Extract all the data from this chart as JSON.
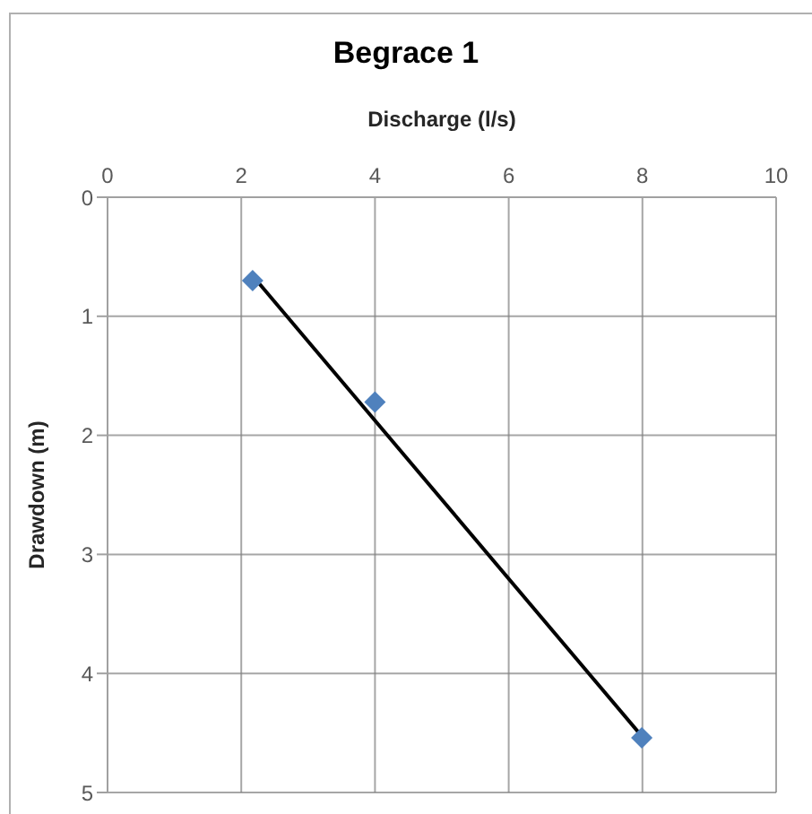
{
  "chart_data": {
    "type": "scatter",
    "title": "Begrace 1",
    "xlabel": "Discharge (l/s)",
    "ylabel": "Drawdown (m)",
    "xlim": [
      0,
      10
    ],
    "xticks": [
      0,
      2,
      4,
      6,
      8,
      10
    ],
    "ylim": [
      5,
      0
    ],
    "yticks": [
      0,
      1,
      2,
      3,
      4,
      5
    ],
    "grid": true,
    "series": [
      {
        "color": "#4f81bd",
        "marker": "diamond",
        "x": [
          2.17,
          4.0,
          7.99
        ],
        "values": [
          0.7,
          1.72,
          4.54
        ]
      },
      {
        "type": "line",
        "marker": "none",
        "color": "#000000",
        "x": [
          2.2,
          7.95
        ],
        "values": [
          0.68,
          4.5
        ]
      }
    ]
  }
}
